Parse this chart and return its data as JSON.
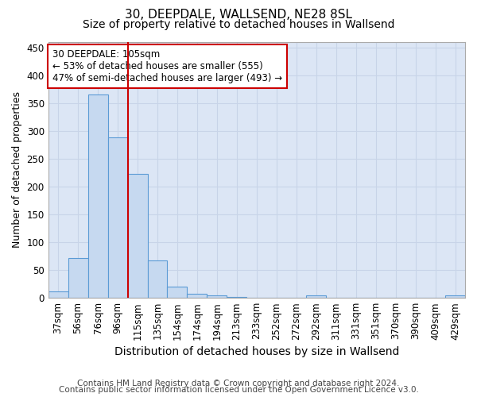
{
  "title1": "30, DEEPDALE, WALLSEND, NE28 8SL",
  "title2": "Size of property relative to detached houses in Wallsend",
  "xlabel": "Distribution of detached houses by size in Wallsend",
  "ylabel": "Number of detached properties",
  "footer1": "Contains HM Land Registry data © Crown copyright and database right 2024.",
  "footer2": "Contains public sector information licensed under the Open Government Licence v3.0.",
  "categories": [
    "37sqm",
    "56sqm",
    "76sqm",
    "96sqm",
    "115sqm",
    "135sqm",
    "154sqm",
    "174sqm",
    "194sqm",
    "213sqm",
    "233sqm",
    "252sqm",
    "272sqm",
    "292sqm",
    "311sqm",
    "331sqm",
    "351sqm",
    "370sqm",
    "390sqm",
    "409sqm",
    "429sqm"
  ],
  "values": [
    12,
    72,
    365,
    288,
    223,
    67,
    20,
    7,
    5,
    1,
    0,
    0,
    0,
    5,
    0,
    0,
    0,
    0,
    0,
    0,
    4
  ],
  "bar_color": "#c6d9f0",
  "bar_edge_color": "#5b9bd5",
  "vline_x": 3.5,
  "vline_color": "#cc0000",
  "annotation_text": "30 DEEPDALE: 105sqm\n← 53% of detached houses are smaller (555)\n47% of semi-detached houses are larger (493) →",
  "annotation_box_color": "white",
  "annotation_box_edge_color": "#cc0000",
  "ylim": [
    0,
    460
  ],
  "yticks": [
    0,
    50,
    100,
    150,
    200,
    250,
    300,
    350,
    400,
    450
  ],
  "grid_color": "#c8d4e8",
  "background_color": "#dce6f5",
  "title1_fontsize": 11,
  "title2_fontsize": 10,
  "xlabel_fontsize": 10,
  "ylabel_fontsize": 9,
  "tick_fontsize": 8.5,
  "footer_fontsize": 7.5,
  "annot_fontsize": 8.5
}
